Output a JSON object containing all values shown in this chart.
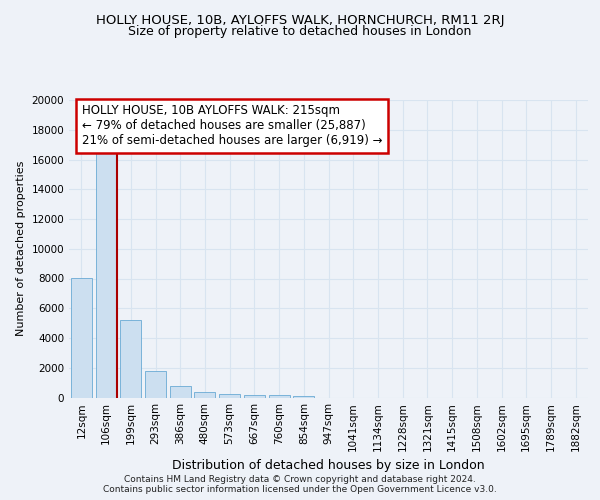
{
  "title": "HOLLY HOUSE, 10B, AYLOFFS WALK, HORNCHURCH, RM11 2RJ",
  "subtitle": "Size of property relative to detached houses in London",
  "xlabel": "Distribution of detached houses by size in London",
  "ylabel": "Number of detached properties",
  "bar_color": "#ccdff0",
  "bar_edge_color": "#6aaad4",
  "categories": [
    "12sqm",
    "106sqm",
    "199sqm",
    "293sqm",
    "386sqm",
    "480sqm",
    "573sqm",
    "667sqm",
    "760sqm",
    "854sqm",
    "947sqm",
    "1041sqm",
    "1134sqm",
    "1228sqm",
    "1321sqm",
    "1415sqm",
    "1508sqm",
    "1602sqm",
    "1695sqm",
    "1789sqm",
    "1882sqm"
  ],
  "values": [
    8050,
    16550,
    5200,
    1750,
    750,
    350,
    260,
    190,
    150,
    90,
    0,
    0,
    0,
    0,
    0,
    0,
    0,
    0,
    0,
    0,
    0
  ],
  "ylim": [
    0,
    20000
  ],
  "yticks": [
    0,
    2000,
    4000,
    6000,
    8000,
    10000,
    12000,
    14000,
    16000,
    18000,
    20000
  ],
  "vline_color": "#aa0000",
  "annotation_text": "HOLLY HOUSE, 10B AYLOFFS WALK: 215sqm\n← 79% of detached houses are smaller (25,887)\n21% of semi-detached houses are larger (6,919) →",
  "annotation_box_color": "#ffffff",
  "annotation_box_edge": "#cc0000",
  "footer": "Contains HM Land Registry data © Crown copyright and database right 2024.\nContains public sector information licensed under the Open Government Licence v3.0.",
  "background_color": "#eef2f8",
  "grid_color": "#d8e4f0",
  "title_fontsize": 9.5,
  "subtitle_fontsize": 9,
  "ylabel_fontsize": 8,
  "xlabel_fontsize": 9,
  "tick_fontsize": 7.5,
  "annot_fontsize": 8.5
}
